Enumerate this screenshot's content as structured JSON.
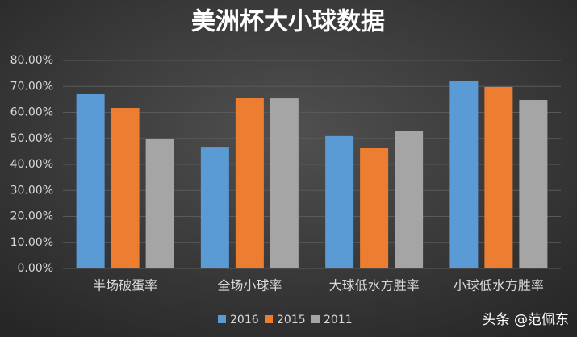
{
  "chart_data": {
    "type": "bar",
    "title": "美洲杯大小球数据",
    "categories": [
      "半场破蛋率",
      "全场小球率",
      "大球低水方胜率",
      "小球低水方胜率"
    ],
    "series": [
      {
        "name": "2016",
        "color": "#5b9bd5",
        "values": [
          67.3,
          46.8,
          50.9,
          72.2
        ]
      },
      {
        "name": "2015",
        "color": "#ed7d31",
        "values": [
          61.7,
          65.7,
          46.2,
          69.8
        ]
      },
      {
        "name": "2011",
        "color": "#a5a5a5",
        "values": [
          49.9,
          65.4,
          53.0,
          64.8
        ]
      }
    ],
    "ylim": [
      0,
      80
    ],
    "yticks": [
      {
        "value": 0,
        "label": "0.00%"
      },
      {
        "value": 10,
        "label": "10.00%"
      },
      {
        "value": 20,
        "label": "20.00%"
      },
      {
        "value": 30,
        "label": "30.00%"
      },
      {
        "value": 40,
        "label": "40.00%"
      },
      {
        "value": 50,
        "label": "50.00%"
      },
      {
        "value": 60,
        "label": "60.00%"
      },
      {
        "value": 70,
        "label": "70.00%"
      },
      {
        "value": 80,
        "label": "80.00%"
      }
    ],
    "grid": true,
    "legend": "bottom",
    "watermark": "头条 @范佩东"
  }
}
